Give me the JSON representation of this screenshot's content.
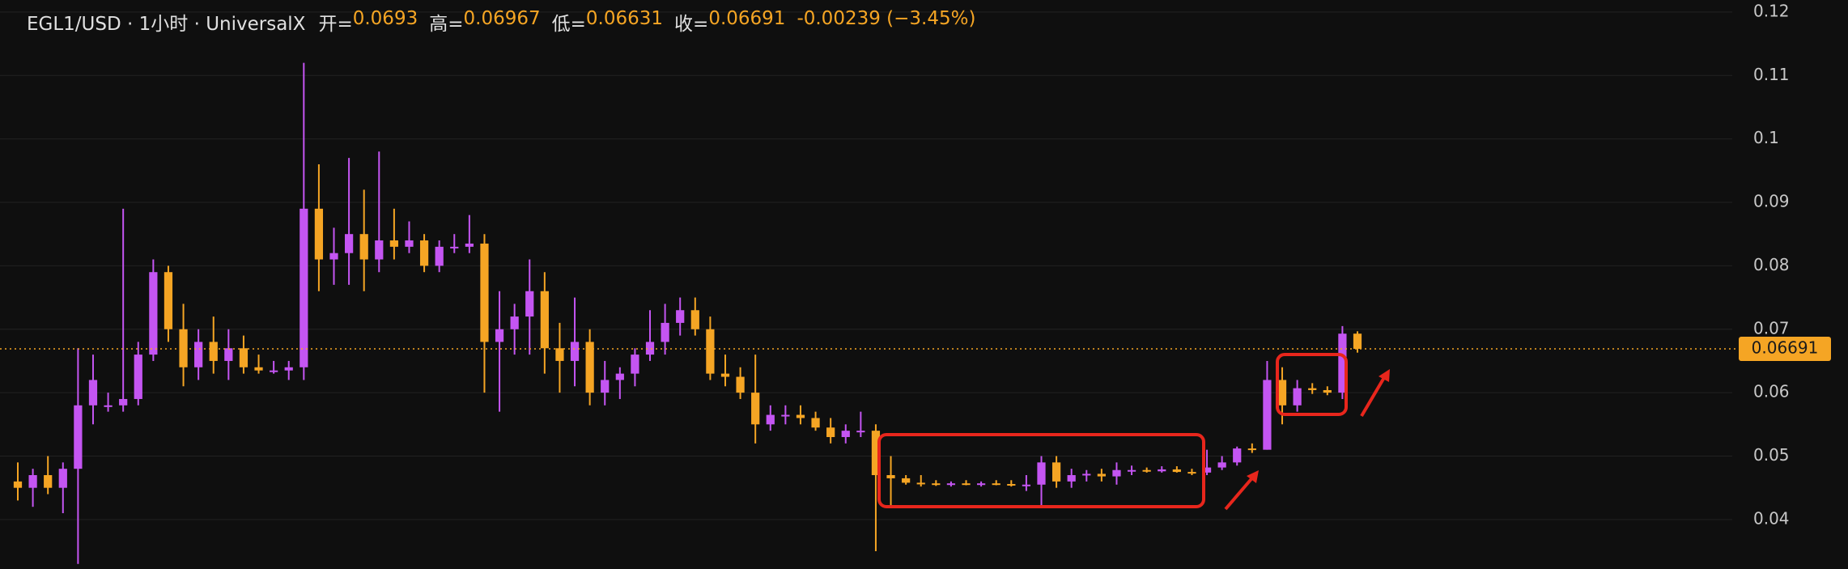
{
  "chart_data": {
    "type": "candlestick",
    "title": "EGL1/USD · 1小时 · UniversalX",
    "legend_labels": {
      "open": "开=",
      "high": "高=",
      "low": "低=",
      "close": "收="
    },
    "change": "-0.00239 (−3.45%)",
    "up_color": "#c455f2",
    "down_color": "#f5a524",
    "ylim": [
      0.0322,
      0.1219
    ],
    "yticks": [
      0.04,
      0.05,
      0.06,
      0.07,
      0.08,
      0.09,
      0.1,
      0.11,
      0.12
    ],
    "grid": true,
    "open": [
      0.046,
      0.045,
      0.047,
      0.045,
      0.048,
      0.058,
      0.058,
      0.058,
      0.059,
      0.066,
      0.079,
      0.07,
      0.064,
      0.068,
      0.065,
      0.067,
      0.064,
      0.0635,
      0.0635,
      0.064,
      0.089,
      0.081,
      0.082,
      0.085,
      0.081,
      0.084,
      0.083,
      0.084,
      0.08,
      0.083,
      0.083,
      0.0835,
      0.068,
      0.07,
      0.072,
      0.076,
      0.067,
      0.065,
      0.068,
      0.06,
      0.062,
      0.063,
      0.066,
      0.068,
      0.071,
      0.073,
      0.07,
      0.063,
      0.0625,
      0.06,
      0.055,
      0.0565,
      0.0565,
      0.056,
      0.0545,
      0.053,
      0.054,
      0.054,
      0.047,
      0.0465,
      0.0458,
      0.0457,
      0.0455,
      0.0457,
      0.0455,
      0.0457,
      0.0456,
      0.0454,
      0.0455,
      0.049,
      0.046,
      0.047,
      0.0472,
      0.0468,
      0.0478,
      0.0478,
      0.0476,
      0.0479,
      0.0475,
      0.0474,
      0.0482,
      0.049,
      0.0512,
      0.051,
      0.062,
      0.058,
      0.0607,
      0.0604,
      0.06,
      0.0693
    ],
    "high": [
      0.049,
      0.048,
      0.05,
      0.049,
      0.067,
      0.066,
      0.06,
      0.089,
      0.068,
      0.081,
      0.08,
      0.074,
      0.07,
      0.072,
      0.07,
      0.069,
      0.066,
      0.065,
      0.065,
      0.112,
      0.096,
      0.086,
      0.097,
      0.092,
      0.098,
      0.089,
      0.087,
      0.085,
      0.084,
      0.085,
      0.088,
      0.085,
      0.076,
      0.074,
      0.081,
      0.079,
      0.071,
      0.075,
      0.07,
      0.065,
      0.064,
      0.067,
      0.073,
      0.074,
      0.075,
      0.075,
      0.072,
      0.066,
      0.064,
      0.066,
      0.058,
      0.058,
      0.058,
      0.057,
      0.056,
      0.055,
      0.057,
      0.055,
      0.05,
      0.047,
      0.047,
      0.0462,
      0.046,
      0.0462,
      0.046,
      0.0462,
      0.0462,
      0.047,
      0.05,
      0.05,
      0.048,
      0.0478,
      0.048,
      0.049,
      0.0485,
      0.0482,
      0.0484,
      0.0484,
      0.048,
      0.051,
      0.05,
      0.0515,
      0.052,
      0.065,
      0.064,
      0.062,
      0.0615,
      0.061,
      0.0705,
      0.06967
    ],
    "low": [
      0.043,
      0.042,
      0.044,
      0.041,
      0.033,
      0.055,
      0.057,
      0.057,
      0.058,
      0.065,
      0.068,
      0.061,
      0.062,
      0.063,
      0.062,
      0.063,
      0.063,
      0.063,
      0.062,
      0.062,
      0.076,
      0.077,
      0.077,
      0.076,
      0.079,
      0.081,
      0.082,
      0.079,
      0.079,
      0.082,
      0.082,
      0.06,
      0.057,
      0.066,
      0.066,
      0.063,
      0.06,
      0.061,
      0.058,
      0.058,
      0.059,
      0.061,
      0.065,
      0.066,
      0.069,
      0.069,
      0.062,
      0.061,
      0.059,
      0.052,
      0.054,
      0.055,
      0.055,
      0.054,
      0.052,
      0.052,
      0.053,
      0.035,
      0.042,
      0.0455,
      0.0452,
      0.0453,
      0.0452,
      0.0454,
      0.0452,
      0.0454,
      0.0452,
      0.0445,
      0.042,
      0.045,
      0.045,
      0.046,
      0.046,
      0.0455,
      0.047,
      0.0474,
      0.0474,
      0.0474,
      0.047,
      0.047,
      0.0478,
      0.0485,
      0.0505,
      0.051,
      0.055,
      0.057,
      0.0598,
      0.0596,
      0.059,
      0.06631
    ],
    "close": [
      0.045,
      0.047,
      0.045,
      0.048,
      0.058,
      0.062,
      0.058,
      0.059,
      0.066,
      0.079,
      0.07,
      0.064,
      0.068,
      0.065,
      0.067,
      0.064,
      0.0635,
      0.0635,
      0.064,
      0.089,
      0.081,
      0.082,
      0.085,
      0.081,
      0.084,
      0.083,
      0.084,
      0.08,
      0.083,
      0.083,
      0.0835,
      0.068,
      0.07,
      0.072,
      0.076,
      0.067,
      0.065,
      0.068,
      0.06,
      0.062,
      0.063,
      0.066,
      0.068,
      0.071,
      0.073,
      0.07,
      0.063,
      0.0625,
      0.06,
      0.055,
      0.0565,
      0.0565,
      0.056,
      0.0545,
      0.053,
      0.054,
      0.054,
      0.047,
      0.0465,
      0.0458,
      0.0457,
      0.0455,
      0.0457,
      0.0455,
      0.0457,
      0.0456,
      0.0454,
      0.0455,
      0.049,
      0.046,
      0.047,
      0.0472,
      0.0468,
      0.0478,
      0.0478,
      0.0476,
      0.0479,
      0.0475,
      0.0474,
      0.0482,
      0.049,
      0.0512,
      0.051,
      0.062,
      0.058,
      0.0607,
      0.0604,
      0.06,
      0.0693,
      0.06691
    ]
  }
}
